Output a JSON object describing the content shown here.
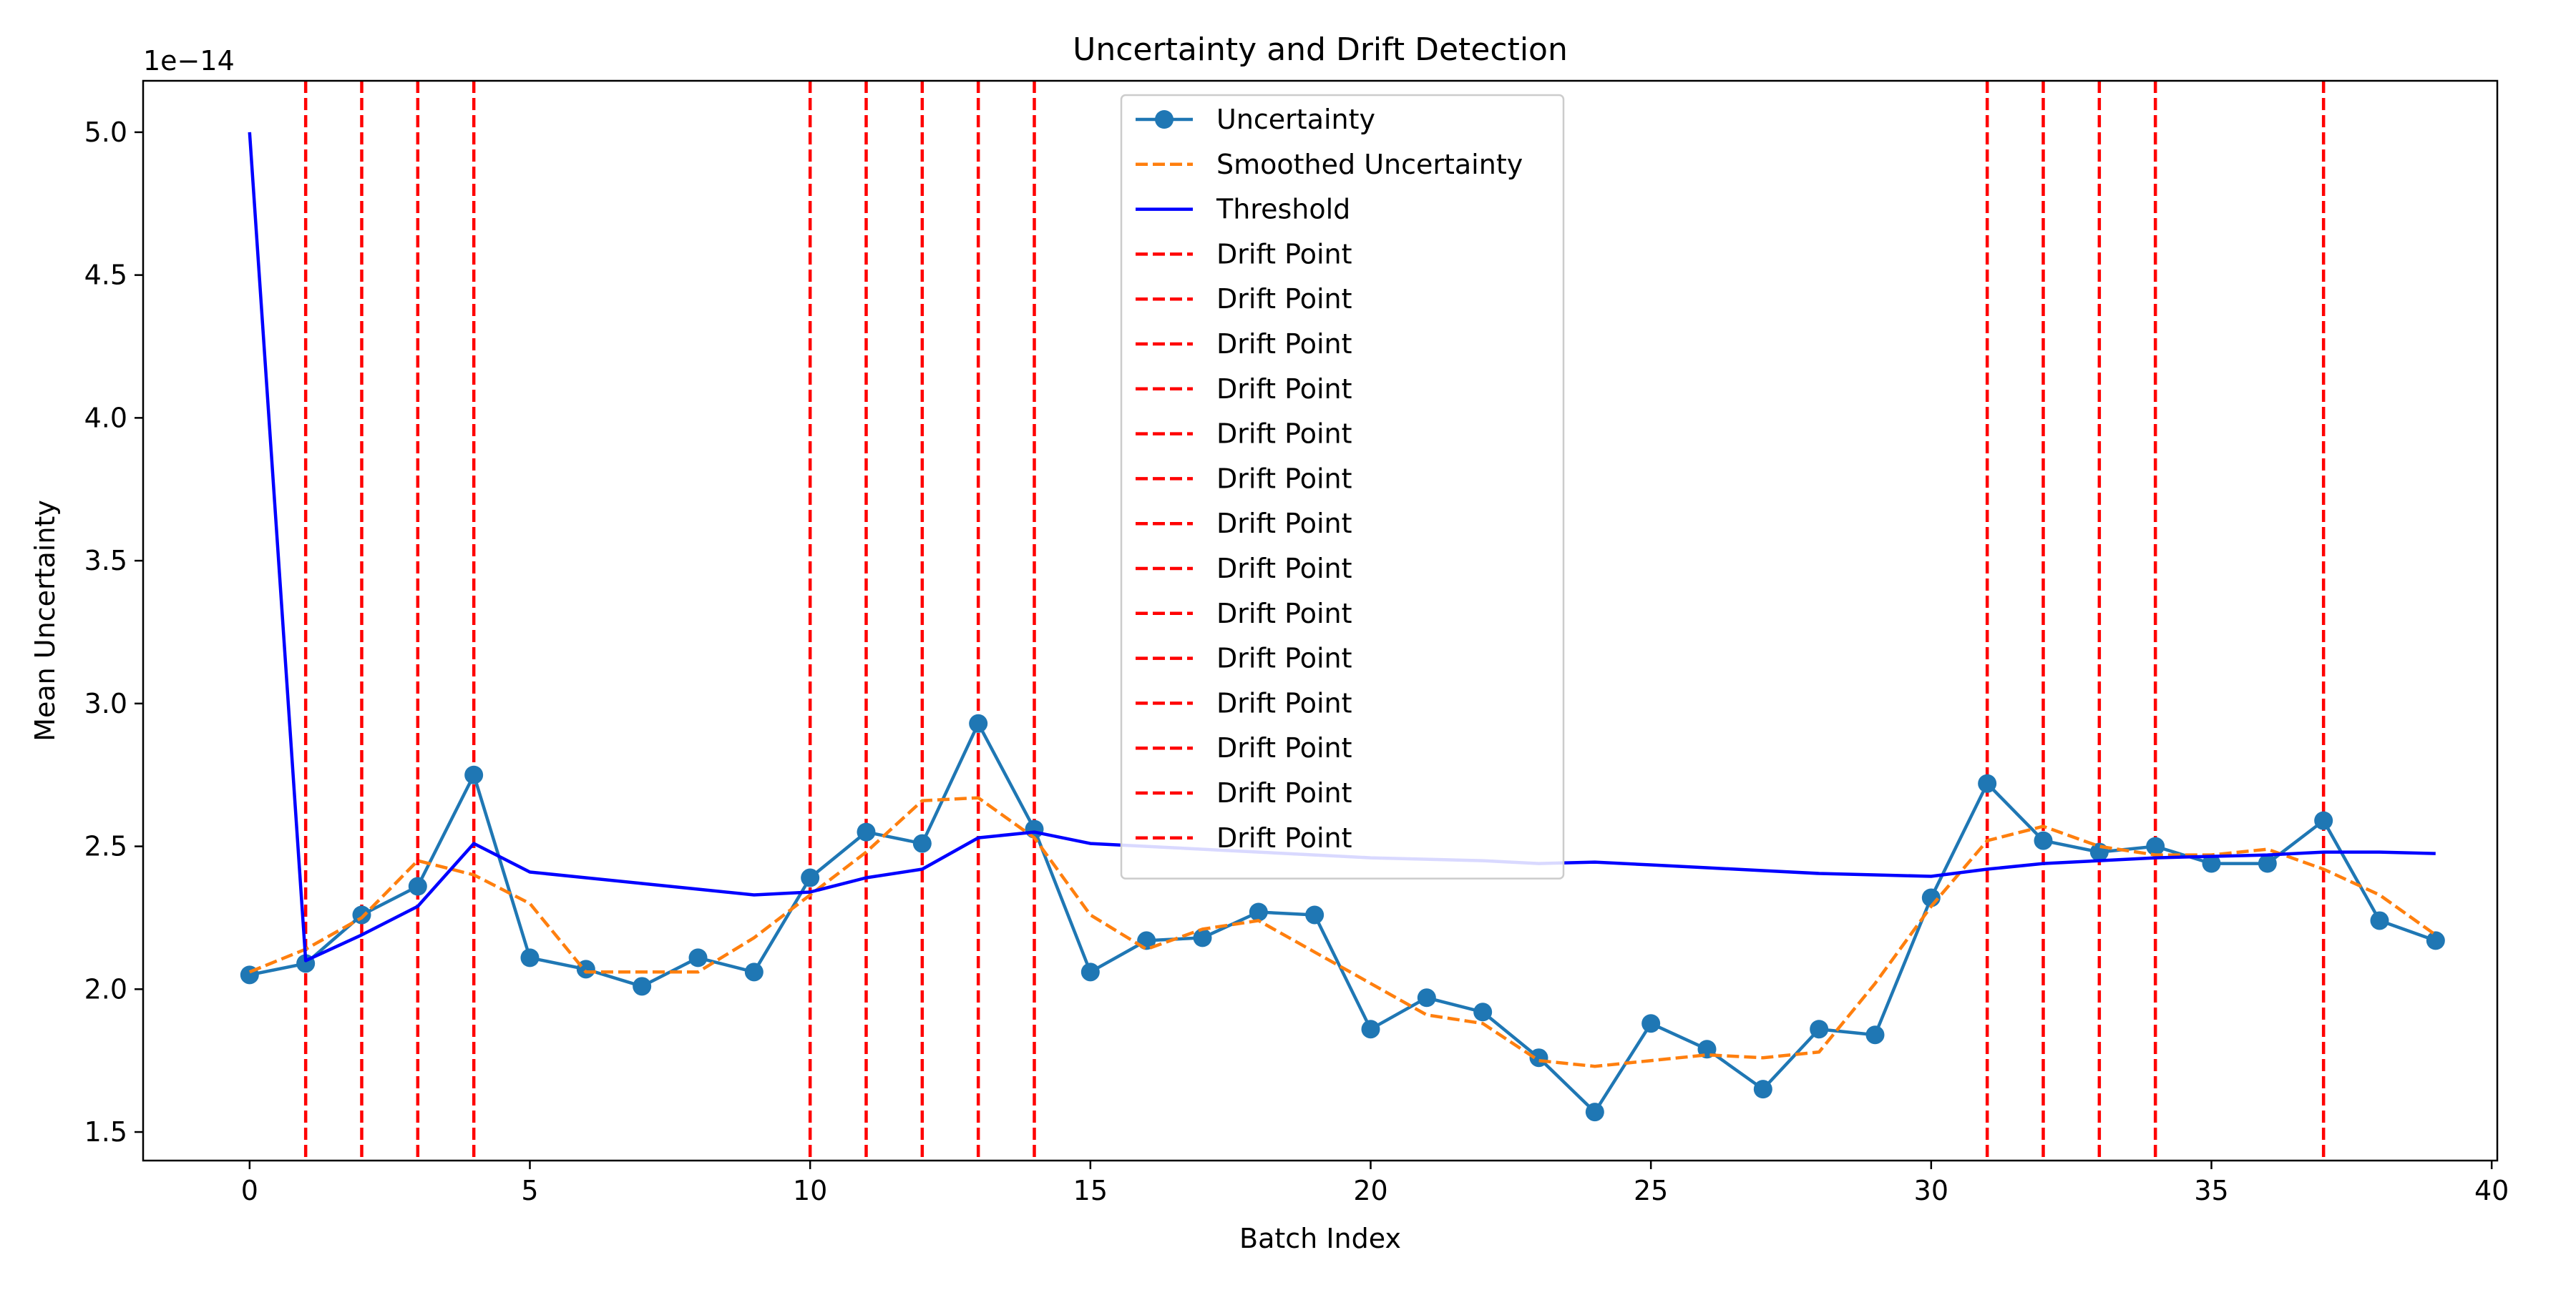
{
  "chart_data": {
    "type": "line",
    "title": "Uncertainty and Drift Detection",
    "xlabel": "Batch Index",
    "ylabel": "Mean Uncertainty",
    "y_offset_label": "1e−14",
    "y_scale_multiplier": 1e-14,
    "xlim": [
      -1.9,
      40.1
    ],
    "ylim": [
      1.4,
      5.18
    ],
    "x_ticks": [
      0,
      5,
      10,
      15,
      20,
      25,
      30,
      35,
      40
    ],
    "x_tick_labels": [
      "0",
      "5",
      "10",
      "15",
      "20",
      "25",
      "30",
      "35",
      "40"
    ],
    "y_ticks": [
      1.5,
      2.0,
      2.5,
      3.0,
      3.5,
      4.0,
      4.5,
      5.0
    ],
    "y_tick_labels": [
      "1.5",
      "2.0",
      "2.5",
      "3.0",
      "3.5",
      "4.0",
      "4.5",
      "5.0"
    ],
    "grid": false,
    "legend_position": "top-center",
    "x": [
      0,
      1,
      2,
      3,
      4,
      5,
      6,
      7,
      8,
      9,
      10,
      11,
      12,
      13,
      14,
      15,
      16,
      17,
      18,
      19,
      20,
      21,
      22,
      23,
      24,
      25,
      26,
      27,
      28,
      29,
      30,
      31,
      32,
      33,
      34,
      35,
      36,
      37,
      38,
      39
    ],
    "series": [
      {
        "name": "Uncertainty",
        "color": "#1f77b4",
        "style": "solid-marker",
        "values": [
          2.05,
          2.09,
          2.26,
          2.36,
          2.75,
          2.11,
          2.07,
          2.01,
          2.11,
          2.06,
          2.39,
          2.55,
          2.51,
          2.93,
          2.56,
          2.06,
          2.17,
          2.18,
          2.27,
          2.26,
          1.86,
          1.97,
          1.92,
          1.76,
          1.57,
          1.88,
          1.79,
          1.65,
          1.86,
          1.84,
          2.32,
          2.72,
          2.52,
          2.48,
          2.5,
          2.44,
          2.44,
          2.59,
          2.24,
          2.17
        ]
      },
      {
        "name": "Smoothed Uncertainty",
        "color": "#ff7f0e",
        "style": "dashed",
        "values": [
          2.06,
          2.14,
          2.25,
          2.45,
          2.4,
          2.3,
          2.06,
          2.06,
          2.06,
          2.18,
          2.33,
          2.48,
          2.66,
          2.67,
          2.53,
          2.26,
          2.14,
          2.21,
          2.24,
          2.13,
          2.02,
          1.91,
          1.88,
          1.75,
          1.73,
          1.75,
          1.77,
          1.76,
          1.78,
          2.02,
          2.29,
          2.52,
          2.57,
          2.5,
          2.47,
          2.47,
          2.49,
          2.42,
          2.33,
          2.19
        ]
      },
      {
        "name": "Threshold",
        "color": "#0000ff",
        "style": "solid",
        "values": [
          5.0,
          2.1,
          2.19,
          2.29,
          2.51,
          2.41,
          2.39,
          2.37,
          2.35,
          2.33,
          2.34,
          2.39,
          2.42,
          2.53,
          2.55,
          2.51,
          2.5,
          2.49,
          2.48,
          2.47,
          2.46,
          2.455,
          2.45,
          2.44,
          2.445,
          2.435,
          2.425,
          2.415,
          2.405,
          2.4,
          2.395,
          2.42,
          2.44,
          2.45,
          2.46,
          2.465,
          2.47,
          2.48,
          2.48,
          2.475
        ]
      }
    ],
    "drift_points": {
      "color": "#ff0000",
      "style": "dashed",
      "x": [
        1,
        2,
        3,
        4,
        10,
        11,
        12,
        13,
        14,
        31,
        32,
        33,
        34,
        37
      ]
    },
    "legend_entries": [
      {
        "label": "Uncertainty",
        "color": "#1f77b4",
        "style": "solid-marker"
      },
      {
        "label": "Smoothed Uncertainty",
        "color": "#ff7f0e",
        "style": "dashed"
      },
      {
        "label": "Threshold",
        "color": "#0000ff",
        "style": "solid"
      },
      {
        "label": "Drift Point",
        "color": "#ff0000",
        "style": "dashed"
      },
      {
        "label": "Drift Point",
        "color": "#ff0000",
        "style": "dashed"
      },
      {
        "label": "Drift Point",
        "color": "#ff0000",
        "style": "dashed"
      },
      {
        "label": "Drift Point",
        "color": "#ff0000",
        "style": "dashed"
      },
      {
        "label": "Drift Point",
        "color": "#ff0000",
        "style": "dashed"
      },
      {
        "label": "Drift Point",
        "color": "#ff0000",
        "style": "dashed"
      },
      {
        "label": "Drift Point",
        "color": "#ff0000",
        "style": "dashed"
      },
      {
        "label": "Drift Point",
        "color": "#ff0000",
        "style": "dashed"
      },
      {
        "label": "Drift Point",
        "color": "#ff0000",
        "style": "dashed"
      },
      {
        "label": "Drift Point",
        "color": "#ff0000",
        "style": "dashed"
      },
      {
        "label": "Drift Point",
        "color": "#ff0000",
        "style": "dashed"
      },
      {
        "label": "Drift Point",
        "color": "#ff0000",
        "style": "dashed"
      },
      {
        "label": "Drift Point",
        "color": "#ff0000",
        "style": "dashed"
      },
      {
        "label": "Drift Point",
        "color": "#ff0000",
        "style": "dashed"
      }
    ]
  }
}
